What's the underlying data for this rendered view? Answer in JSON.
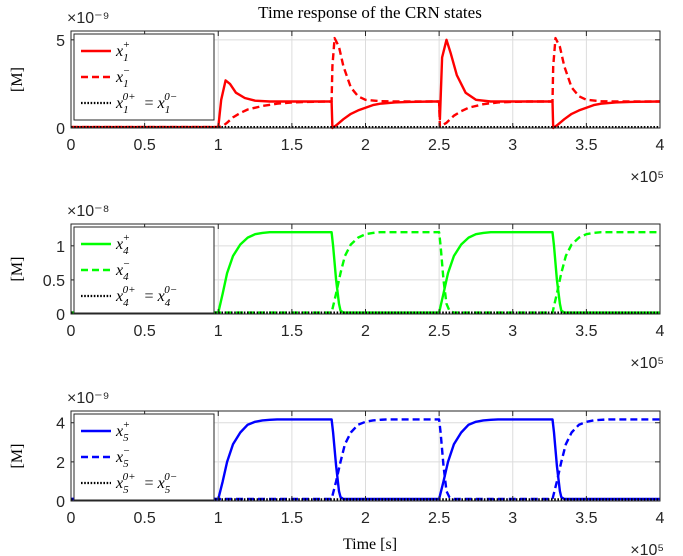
{
  "chart_data": {
    "title": "Time response of the CRN states",
    "xlabel": "Time [s]",
    "x_exponent_label": "×10⁵",
    "panels": [
      {
        "type": "line",
        "ylabel": "[M]",
        "exponent_label": "×10⁻⁹",
        "ylim": [
          0,
          5.5
        ],
        "yticks": [
          "0",
          "5"
        ],
        "ytick_values": [
          0,
          5
        ],
        "xlim": [
          0,
          4
        ],
        "xticks": [
          "0",
          "0.5",
          "1",
          "1.5",
          "2",
          "2.5",
          "3",
          "3.5",
          "4"
        ],
        "grid": true,
        "legend_position": "top-left",
        "color": "#ff0000",
        "series": [
          {
            "name": "x1+",
            "label_base": "x",
            "label_sub": "1",
            "label_sup": "+",
            "style": "solid",
            "x": [
              0,
              0.99,
              1.0,
              1.02,
              1.05,
              1.08,
              1.12,
              1.18,
              1.25,
              1.35,
              1.5,
              1.77,
              1.775,
              1.8,
              1.85,
              1.9,
              1.95,
              2.0,
              2.05,
              2.1,
              2.2,
              2.3,
              2.45,
              2.5,
              2.505,
              2.52,
              2.55,
              2.58,
              2.62,
              2.68,
              2.75,
              2.85,
              3.0,
              3.27,
              3.275,
              3.3,
              3.35,
              3.4,
              3.45,
              3.5,
              3.55,
              3.6,
              3.7,
              3.8,
              4.0
            ],
            "y": [
              0.05,
              0.05,
              0.05,
              1.6,
              2.7,
              2.5,
              2.0,
              1.7,
              1.55,
              1.5,
              1.5,
              1.5,
              0.0,
              0.15,
              0.5,
              0.8,
              1.0,
              1.15,
              1.3,
              1.38,
              1.45,
              1.48,
              1.5,
              1.5,
              0.5,
              4.0,
              5.0,
              4.2,
              3.0,
              2.0,
              1.6,
              1.5,
              1.5,
              1.5,
              0.0,
              0.15,
              0.5,
              0.8,
              1.0,
              1.15,
              1.3,
              1.38,
              1.45,
              1.48,
              1.5
            ]
          },
          {
            "name": "x1-",
            "label_base": "x",
            "label_sub": "1",
            "label_sup": "−",
            "style": "dashed",
            "x": [
              0,
              1.0,
              1.03,
              1.06,
              1.1,
              1.15,
              1.2,
              1.3,
              1.4,
              1.5,
              1.6,
              1.77,
              1.775,
              1.79,
              1.82,
              1.85,
              1.9,
              1.95,
              2.0,
              2.1,
              2.2,
              2.35,
              2.5,
              2.505,
              2.55,
              2.6,
              2.65,
              2.7,
              2.8,
              2.9,
              3.0,
              3.1,
              3.27,
              3.275,
              3.29,
              3.32,
              3.35,
              3.4,
              3.45,
              3.5,
              3.6,
              3.7,
              3.85,
              4.0
            ],
            "y": [
              0.05,
              0.05,
              0.1,
              0.3,
              0.6,
              0.85,
              1.05,
              1.25,
              1.38,
              1.45,
              1.48,
              1.5,
              3.5,
              5.1,
              4.6,
              3.5,
              2.3,
              1.8,
              1.6,
              1.52,
              1.5,
              1.5,
              1.5,
              0.05,
              0.3,
              0.7,
              0.95,
              1.15,
              1.35,
              1.45,
              1.48,
              1.5,
              1.5,
              3.5,
              5.1,
              4.6,
              3.5,
              2.3,
              1.8,
              1.6,
              1.52,
              1.5,
              1.5,
              1.5
            ]
          },
          {
            "name": "x1^0+ = x1^0-",
            "label_base": "x",
            "label_sub": "1",
            "label_sup": "0+",
            "label_rhs_sub": "1",
            "label_rhs_sup": "0−",
            "style": "dotted",
            "x": [
              0,
              4
            ],
            "y": [
              0.05,
              0.05
            ]
          }
        ]
      },
      {
        "type": "line",
        "ylabel": "[M]",
        "exponent_label": "×10⁻⁸",
        "ylim": [
          0,
          1.32
        ],
        "yticks": [
          "0",
          "0.5",
          "1"
        ],
        "ytick_values": [
          0,
          0.5,
          1
        ],
        "xlim": [
          0,
          4
        ],
        "xticks": [
          "0",
          "0.5",
          "1",
          "1.5",
          "2",
          "2.5",
          "3",
          "3.5",
          "4"
        ],
        "grid": true,
        "legend_position": "top-left",
        "color": "#00ff00",
        "series": [
          {
            "name": "x4+",
            "label_base": "x",
            "label_sub": "4",
            "label_sup": "+",
            "style": "solid",
            "x": [
              0,
              1.0,
              1.03,
              1.06,
              1.1,
              1.15,
              1.2,
              1.25,
              1.3,
              1.35,
              1.4,
              1.45,
              1.77,
              1.78,
              1.8,
              1.82,
              1.83,
              1.85,
              1.9,
              2.5,
              2.53,
              2.56,
              2.6,
              2.65,
              2.7,
              2.75,
              2.8,
              2.85,
              2.9,
              2.95,
              3.27,
              3.28,
              3.3,
              3.32,
              3.33,
              3.35,
              3.4,
              4.0
            ],
            "y": [
              0.02,
              0.02,
              0.3,
              0.6,
              0.85,
              1.02,
              1.12,
              1.17,
              1.19,
              1.2,
              1.2,
              1.2,
              1.2,
              1.0,
              0.5,
              0.15,
              0.05,
              0.02,
              0.02,
              0.02,
              0.3,
              0.6,
              0.85,
              1.02,
              1.12,
              1.17,
              1.19,
              1.2,
              1.2,
              1.2,
              1.2,
              1.0,
              0.5,
              0.15,
              0.05,
              0.02,
              0.02,
              0.02
            ]
          },
          {
            "name": "x4-",
            "label_base": "x",
            "label_sub": "4",
            "label_sup": "−",
            "style": "dashed",
            "x": [
              0,
              1.77,
              1.8,
              1.83,
              1.86,
              1.9,
              1.95,
              2.0,
              2.05,
              2.1,
              2.15,
              2.2,
              2.5,
              2.51,
              2.53,
              2.55,
              2.57,
              2.6,
              3.27,
              3.3,
              3.33,
              3.36,
              3.4,
              3.45,
              3.5,
              3.55,
              3.6,
              3.65,
              3.7,
              4.0
            ],
            "y": [
              0.02,
              0.02,
              0.3,
              0.6,
              0.85,
              1.02,
              1.12,
              1.17,
              1.19,
              1.2,
              1.2,
              1.2,
              1.2,
              1.0,
              0.5,
              0.15,
              0.05,
              0.02,
              0.02,
              0.3,
              0.6,
              0.85,
              1.02,
              1.12,
              1.17,
              1.19,
              1.2,
              1.2,
              1.2,
              1.2
            ]
          },
          {
            "name": "x4^0+ = x4^0-",
            "label_base": "x",
            "label_sub": "4",
            "label_sup": "0+",
            "label_rhs_sub": "4",
            "label_rhs_sup": "0−",
            "style": "dotted",
            "x": [
              0,
              4
            ],
            "y": [
              0.02,
              0.02
            ]
          }
        ]
      },
      {
        "type": "line",
        "ylabel": "[M]",
        "exponent_label": "×10⁻⁹",
        "ylim": [
          0,
          4.6
        ],
        "yticks": [
          "0",
          "2",
          "4"
        ],
        "ytick_values": [
          0,
          2,
          4
        ],
        "xlim": [
          0,
          4
        ],
        "xticks": [
          "0",
          "0.5",
          "1",
          "1.5",
          "2",
          "2.5",
          "3",
          "3.5",
          "4"
        ],
        "grid": true,
        "legend_position": "top-left",
        "color": "#0000ff",
        "series": [
          {
            "name": "x5+",
            "label_base": "x",
            "label_sub": "5",
            "label_sup": "+",
            "style": "solid",
            "x": [
              0,
              1.0,
              1.03,
              1.06,
              1.1,
              1.15,
              1.2,
              1.25,
              1.3,
              1.35,
              1.4,
              1.5,
              1.77,
              1.78,
              1.8,
              1.82,
              1.83,
              1.85,
              1.9,
              2.5,
              2.53,
              2.56,
              2.6,
              2.65,
              2.7,
              2.75,
              2.8,
              2.85,
              2.9,
              3.0,
              3.27,
              3.28,
              3.3,
              3.32,
              3.33,
              3.35,
              3.4,
              4.0
            ],
            "y": [
              0.1,
              0.1,
              1.0,
              2.0,
              2.9,
              3.5,
              3.9,
              4.05,
              4.12,
              4.15,
              4.17,
              4.17,
              4.17,
              3.5,
              1.8,
              0.5,
              0.2,
              0.1,
              0.1,
              0.1,
              1.0,
              2.0,
              2.9,
              3.5,
              3.9,
              4.05,
              4.12,
              4.15,
              4.17,
              4.17,
              4.17,
              3.5,
              1.8,
              0.5,
              0.2,
              0.1,
              0.1,
              0.1
            ]
          },
          {
            "name": "x5-",
            "label_base": "x",
            "label_sub": "5",
            "label_sup": "−",
            "style": "dashed",
            "x": [
              0,
              1.77,
              1.8,
              1.83,
              1.86,
              1.9,
              1.95,
              2.0,
              2.05,
              2.1,
              2.15,
              2.25,
              2.5,
              2.51,
              2.53,
              2.55,
              2.57,
              2.6,
              3.27,
              3.3,
              3.33,
              3.36,
              3.4,
              3.45,
              3.5,
              3.55,
              3.6,
              3.65,
              3.75,
              4.0
            ],
            "y": [
              0.1,
              0.1,
              1.0,
              2.0,
              2.9,
              3.5,
              3.9,
              4.05,
              4.12,
              4.15,
              4.17,
              4.17,
              4.17,
              3.5,
              1.8,
              0.5,
              0.2,
              0.1,
              0.1,
              1.0,
              2.0,
              2.9,
              3.5,
              3.9,
              4.05,
              4.12,
              4.15,
              4.17,
              4.17,
              4.17
            ]
          },
          {
            "name": "x5^0+ = x5^0-",
            "label_base": "x",
            "label_sub": "5",
            "label_sup": "0+",
            "label_rhs_sub": "5",
            "label_rhs_sup": "0−",
            "style": "dotted",
            "x": [
              0,
              4
            ],
            "y": [
              0.08,
              0.08
            ]
          }
        ]
      }
    ]
  }
}
